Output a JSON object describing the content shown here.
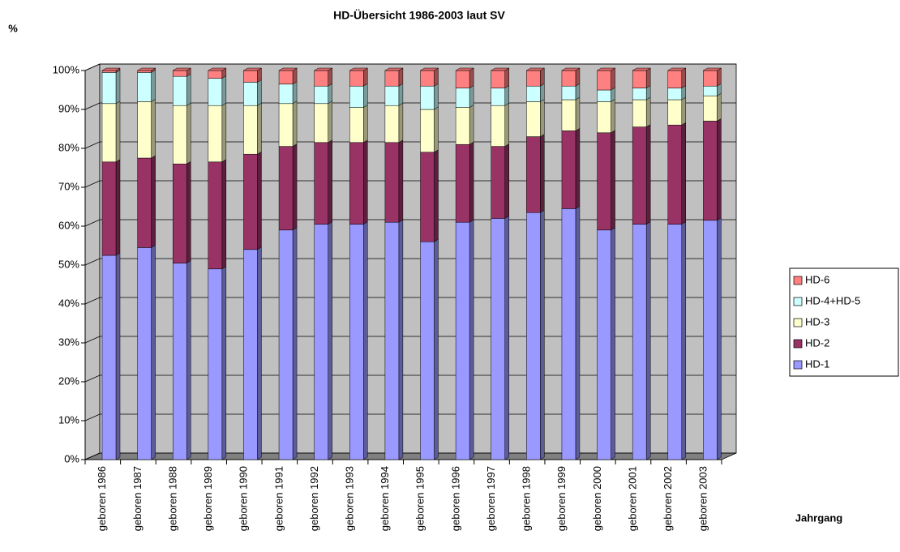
{
  "chart_data": {
    "type": "stacked_bar",
    "title": "HD-Übersicht 1986-2003 laut SV",
    "y_label": "%",
    "x_label": "Jahrgang",
    "categories": [
      "geboren 1986",
      "geboren 1987",
      "geboren 1988",
      "geboren 1989",
      "geboren 1990",
      "geboren 1991",
      "geboren 1992",
      "geboren 1993",
      "geboren 1994",
      "geboren 1995",
      "geboren 1996",
      "geboren 1997",
      "geboren 1998",
      "geboren 1999",
      "geboren 2000",
      "geboren 2001",
      "geboren 2002",
      "geboren 2003"
    ],
    "series": [
      {
        "name": "HD-1",
        "color": "#9999ff",
        "values": [
          52.5,
          54.5,
          50.5,
          49,
          54,
          59,
          60.5,
          60.5,
          61,
          56,
          61,
          62,
          63.5,
          64.5,
          59,
          60.5,
          60.5,
          61.5
        ]
      },
      {
        "name": "HD-2",
        "color": "#993366",
        "values": [
          24,
          23,
          25.5,
          27.5,
          24.5,
          21.5,
          21,
          21,
          20.5,
          23,
          20,
          18.5,
          19.5,
          20,
          25,
          25,
          25.5,
          25.5
        ]
      },
      {
        "name": "HD-3",
        "color": "#ffffcc",
        "values": [
          15,
          14.5,
          15,
          14.5,
          12.5,
          11,
          10,
          9,
          9.5,
          11,
          9.5,
          10.5,
          9,
          8,
          8,
          7,
          6.5,
          6.5
        ]
      },
      {
        "name": "HD-4+HD-5",
        "color": "#ccffff",
        "values": [
          8,
          7.5,
          7.5,
          7,
          6,
          5,
          4.5,
          5.5,
          5,
          6,
          5,
          4.5,
          4,
          3.5,
          3,
          3,
          3,
          2.5
        ]
      },
      {
        "name": "HD-6",
        "color": "#ff8080",
        "values": [
          0.5,
          0.5,
          1.5,
          2,
          3,
          3.5,
          4,
          4,
          4,
          4,
          4.5,
          4.5,
          4,
          4,
          5,
          4.5,
          4.5,
          4
        ]
      }
    ],
    "ylim": [
      0,
      100
    ],
    "yticks": [
      {
        "value": 0,
        "label": "0%"
      },
      {
        "value": 10,
        "label": "10%"
      },
      {
        "value": 20,
        "label": "20%"
      },
      {
        "value": 30,
        "label": "30%"
      },
      {
        "value": 40,
        "label": "40%"
      },
      {
        "value": 50,
        "label": "50%"
      },
      {
        "value": 60,
        "label": "60%"
      },
      {
        "value": 70,
        "label": "70%"
      },
      {
        "value": 80,
        "label": "80%"
      },
      {
        "value": 90,
        "label": "90%"
      },
      {
        "value": 100,
        "label": "100%"
      }
    ],
    "grid": true,
    "legend": "right"
  }
}
